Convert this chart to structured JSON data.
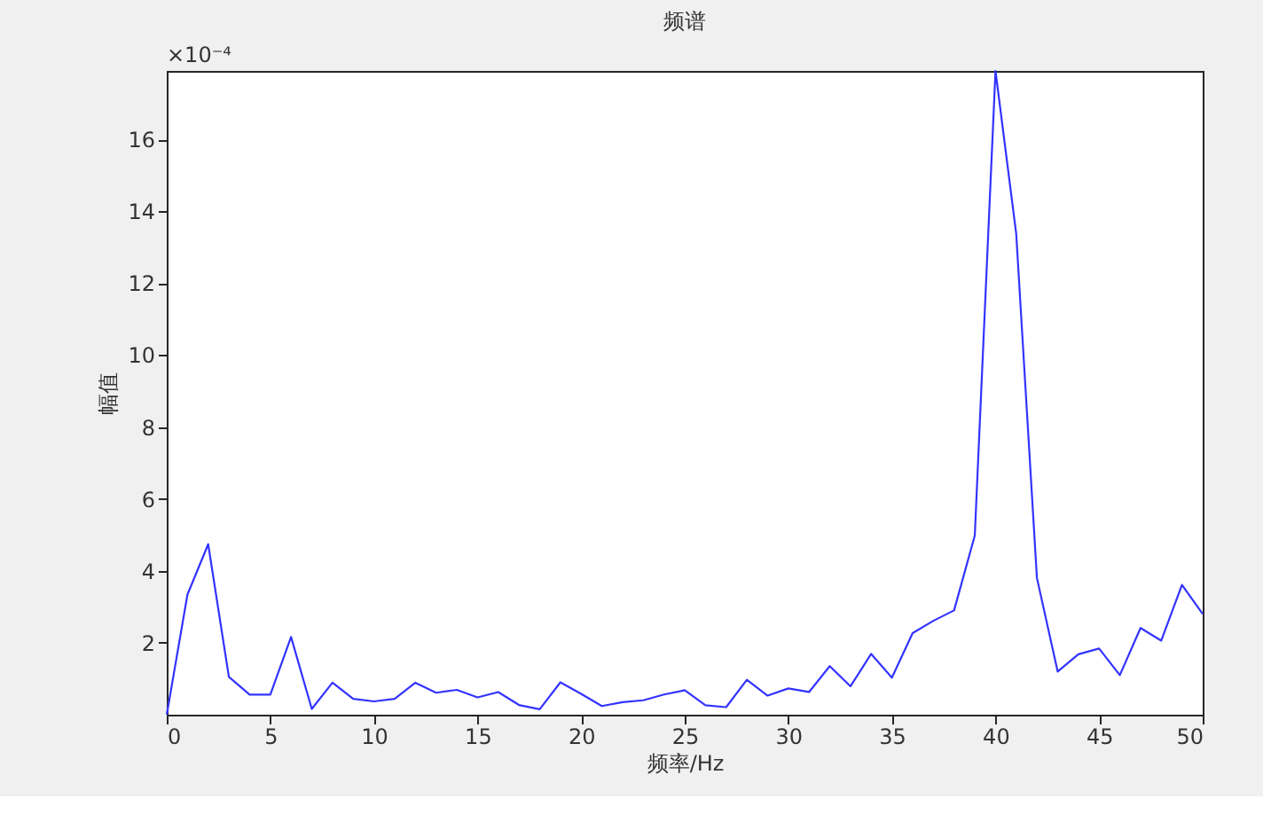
{
  "chart_data": {
    "type": "line",
    "title": "频谱",
    "xlabel": "频率/Hz",
    "ylabel": "幅值",
    "annotations": [
      "×10⁻⁴"
    ],
    "x": [
      0,
      1,
      2,
      3,
      4,
      5,
      6,
      7,
      8,
      9,
      10,
      11,
      12,
      13,
      14,
      15,
      16,
      17,
      18,
      19,
      20,
      21,
      22,
      23,
      24,
      25,
      26,
      27,
      28,
      29,
      30,
      31,
      32,
      33,
      34,
      35,
      36,
      37,
      38,
      39,
      40,
      41,
      42,
      43,
      44,
      45,
      46,
      47,
      48,
      49,
      50
    ],
    "series": [
      {
        "color": "#3333ff",
        "values": [
          0,
          3.34,
          4.74,
          1.05,
          0.56,
          0.56,
          2.16,
          0.16,
          0.89,
          0.44,
          0.37,
          0.44,
          0.89,
          0.61,
          0.69,
          0.48,
          0.63,
          0.27,
          0.15,
          0.9,
          0.58,
          0.24,
          0.35,
          0.4,
          0.56,
          0.68,
          0.26,
          0.21,
          0.97,
          0.53,
          0.73,
          0.63,
          1.35,
          0.79,
          1.69,
          1.03,
          2.27,
          2.61,
          2.9,
          4.98,
          17.9,
          13.37,
          3.8,
          1.2,
          1.68,
          1.84,
          1.1,
          2.41,
          2.06,
          3.61,
          2.8
        ]
      }
    ],
    "xlim": [
      0,
      50
    ],
    "xticks": [
      0,
      5,
      10,
      15,
      20,
      25,
      30,
      35,
      40,
      45,
      50
    ],
    "ylim": [
      0,
      17.9
    ],
    "yticks": [
      2,
      4,
      6,
      8,
      10,
      12,
      14,
      16
    ],
    "grid": false,
    "marker": "none",
    "line_style": "solid"
  }
}
